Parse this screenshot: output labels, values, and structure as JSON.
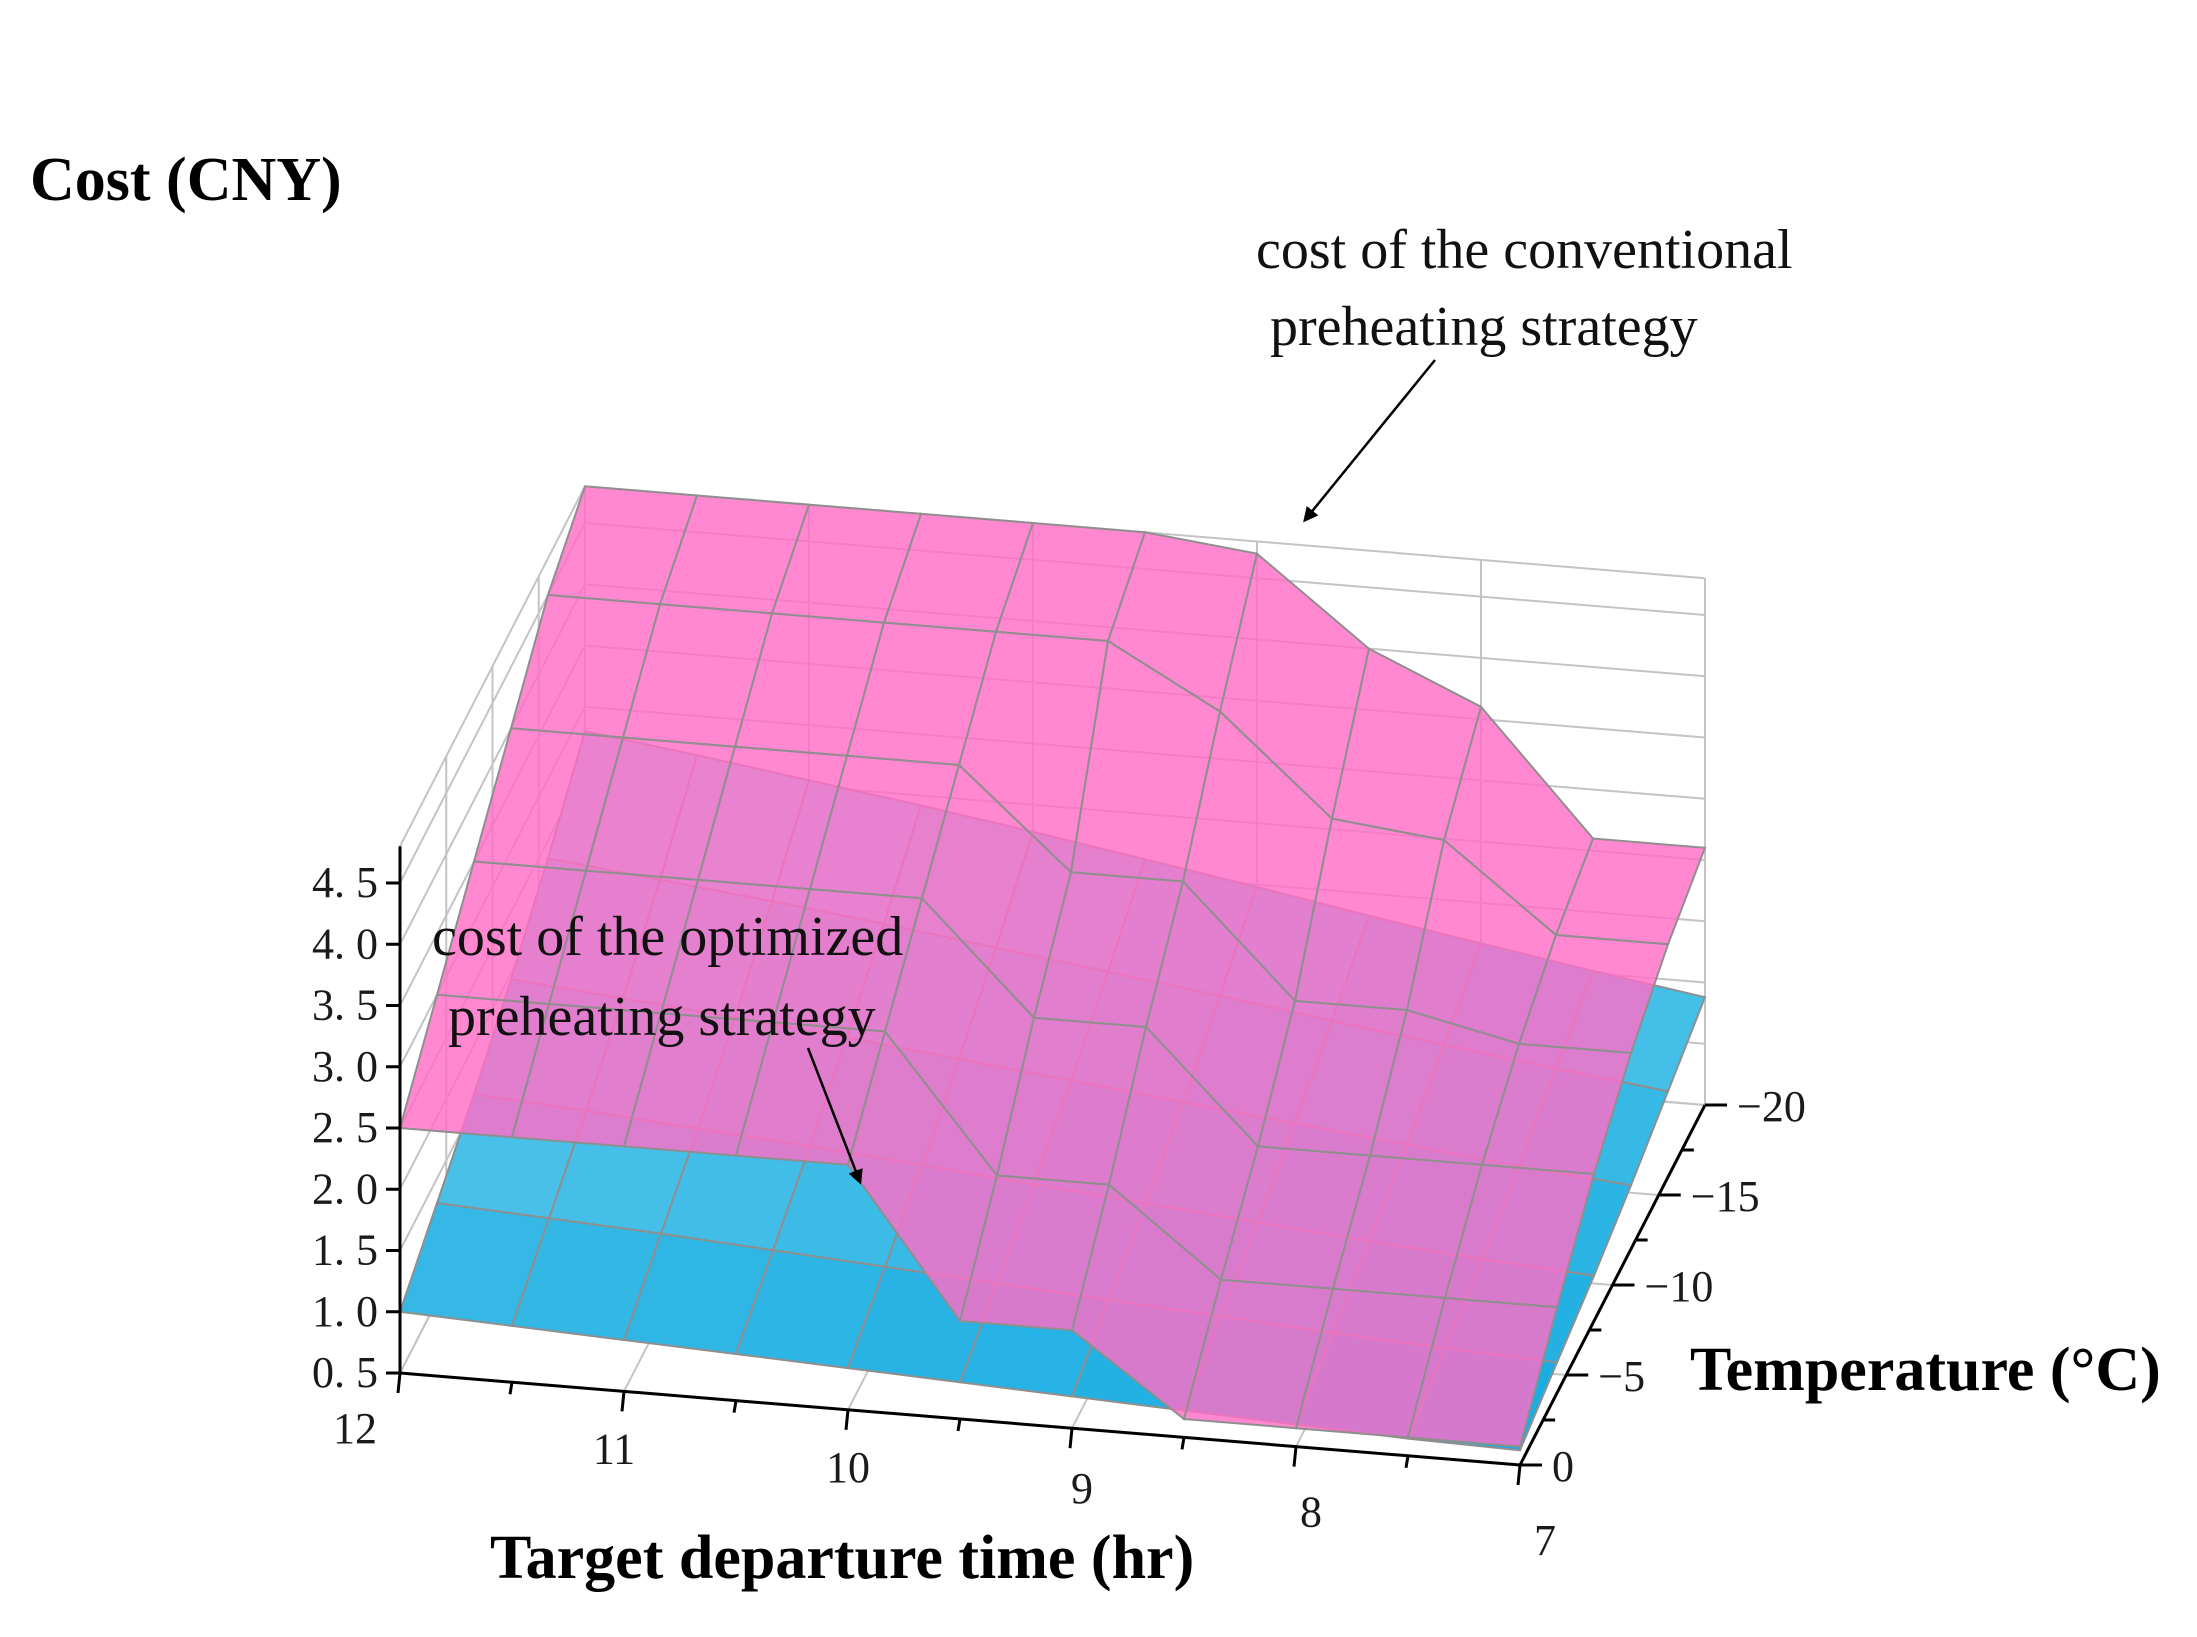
{
  "chart_data": {
    "type": "surface3d",
    "zlabel": "Cost (CNY)",
    "xlabel": "Target departure time (hr)",
    "ylabel": "Temperature (°C)",
    "z_ticks": [
      0.5,
      1.0,
      1.5,
      2.0,
      2.5,
      3.0,
      3.5,
      4.0,
      4.5
    ],
    "z_tick_labels": [
      "0. 5",
      "1. 0",
      "1. 5",
      "2. 0",
      "2. 5",
      "3. 0",
      "3. 5",
      "4. 0",
      "4. 5"
    ],
    "x_ticks": [
      12,
      11,
      10,
      9,
      8,
      7
    ],
    "x_tick_labels": [
      "12",
      "11",
      "10",
      "9",
      "8",
      "7"
    ],
    "y_ticks": [
      0,
      -5,
      -10,
      -15,
      -20
    ],
    "y_tick_labels": [
      "0",
      "−5",
      "−10",
      "−15",
      "−20"
    ],
    "zlim": [
      0.5,
      4.8
    ],
    "x_grid": [
      12,
      11.5,
      11,
      10.5,
      10,
      9.5,
      9,
      8.5,
      8,
      7.5,
      7
    ],
    "y_grid": [
      0,
      -4,
      -8,
      -12,
      -16,
      -20
    ],
    "series": [
      {
        "name": "cost of the conventional preheating strategy",
        "color": "#ff6ec7",
        "z": [
          [
            2.5,
            2.5,
            2.5,
            2.5,
            2.5,
            1.3,
            1.3,
            0.65,
            0.65,
            0.65,
            0.65
          ],
          [
            3.0,
            3.0,
            3.0,
            3.0,
            3.0,
            1.9,
            1.9,
            1.2,
            1.2,
            1.2,
            1.2
          ],
          [
            3.5,
            3.5,
            3.5,
            3.5,
            3.5,
            2.6,
            2.6,
            1.7,
            1.7,
            1.7,
            1.7
          ],
          [
            4.0,
            4.0,
            4.0,
            4.0,
            4.0,
            3.2,
            3.2,
            2.3,
            2.3,
            2.1,
            2.1
          ],
          [
            4.5,
            4.5,
            4.5,
            4.5,
            4.5,
            4.5,
            4.0,
            3.2,
            3.1,
            2.4,
            2.4
          ],
          [
            4.8,
            4.8,
            4.8,
            4.8,
            4.8,
            4.8,
            4.7,
            4.0,
            3.6,
            2.6,
            2.6
          ]
        ]
      },
      {
        "name": "cost of the optimized preheating strategy",
        "color": "#16c2ec",
        "z": [
          [
            1.0,
            0.96,
            0.92,
            0.88,
            0.84,
            0.8,
            0.76,
            0.72,
            0.68,
            0.64,
            0.62
          ],
          [
            1.3,
            1.25,
            1.2,
            1.14,
            1.08,
            1.02,
            0.96,
            0.9,
            0.84,
            0.79,
            0.75
          ],
          [
            1.6,
            1.54,
            1.47,
            1.4,
            1.32,
            1.24,
            1.16,
            1.08,
            1.0,
            0.93,
            0.87
          ],
          [
            1.95,
            1.87,
            1.79,
            1.7,
            1.6,
            1.5,
            1.4,
            1.3,
            1.2,
            1.1,
            1.02
          ],
          [
            2.35,
            2.25,
            2.15,
            2.04,
            1.92,
            1.8,
            1.68,
            1.55,
            1.43,
            1.31,
            1.2
          ],
          [
            2.8,
            2.68,
            2.55,
            2.42,
            2.28,
            2.13,
            1.98,
            1.82,
            1.67,
            1.52,
            1.38
          ]
        ]
      }
    ],
    "annotations": [
      {
        "lines": [
          "cost of the conventional",
          "preheating strategy"
        ]
      },
      {
        "lines": [
          "cost of the optimized",
          "preheating strategy"
        ]
      }
    ]
  }
}
